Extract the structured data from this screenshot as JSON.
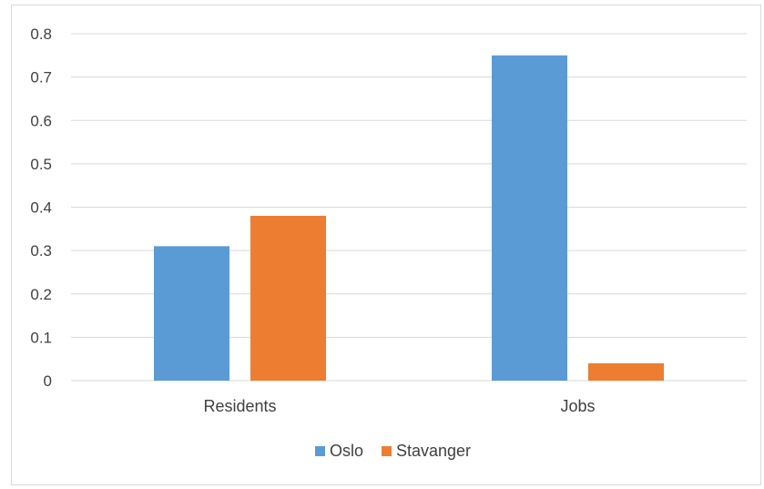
{
  "chart_data": {
    "type": "bar",
    "categories": [
      "Residents",
      "Jobs"
    ],
    "series": [
      {
        "name": "Oslo",
        "color": "#5b9bd5",
        "values": [
          0.31,
          0.75
        ]
      },
      {
        "name": "Stavanger",
        "color": "#ed7d31",
        "values": [
          0.38,
          0.04
        ]
      }
    ],
    "ylim": [
      0,
      0.8
    ],
    "yticks": [
      "0",
      "0.1",
      "0.2",
      "0.3",
      "0.4",
      "0.5",
      "0.6",
      "0.7",
      "0.8"
    ],
    "grid": true,
    "legend_position": "bottom"
  }
}
